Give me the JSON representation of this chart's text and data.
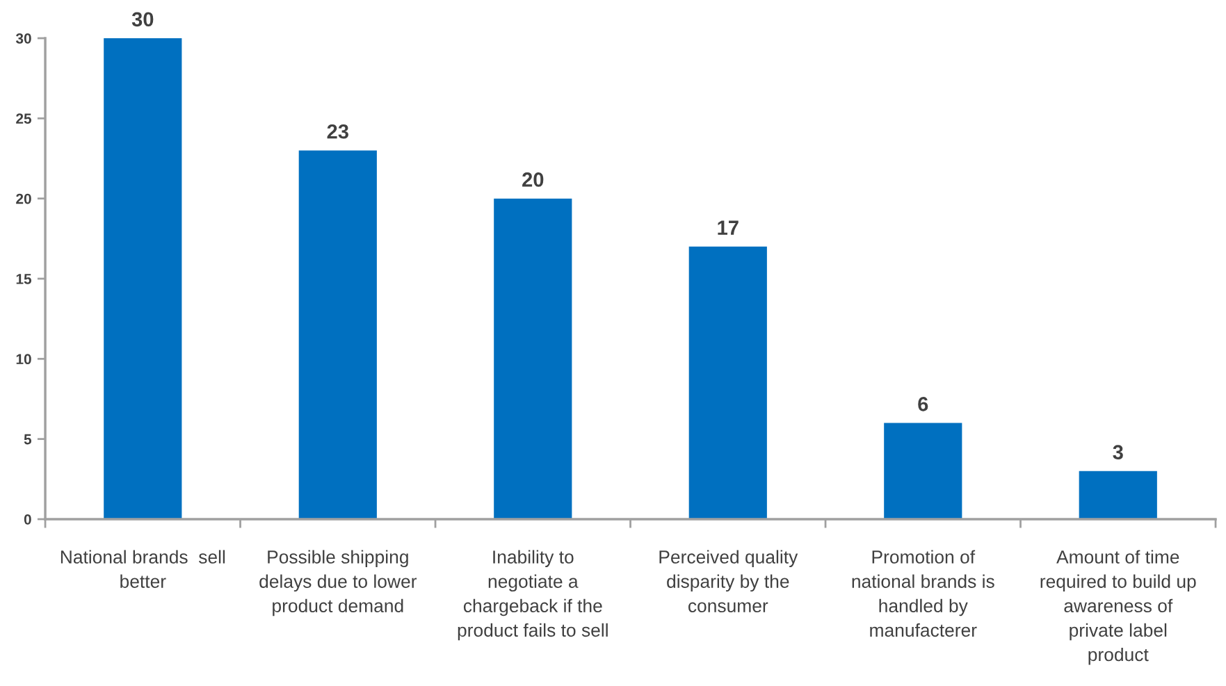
{
  "chart_data": {
    "type": "bar",
    "categories": [
      "National brands  sell\nbetter",
      "Possible shipping\ndelays due to lower\nproduct demand",
      "Inability to\nnegotiate a\nchargeback if the\nproduct fails to sell",
      "Perceived quality\ndisparity by the\nconsumer",
      "Promotion of\nnational brands is\nhandled by\nmanufacterer",
      "Amount of time\nrequired to build up\nawareness of\nprivate label\nproduct"
    ],
    "values": [
      30,
      23,
      20,
      17,
      6,
      3
    ],
    "color": "#0070c0",
    "ylim": [
      0,
      30
    ],
    "yticks": [
      0,
      5,
      10,
      15,
      20,
      25,
      30
    ],
    "data_labels": true
  }
}
